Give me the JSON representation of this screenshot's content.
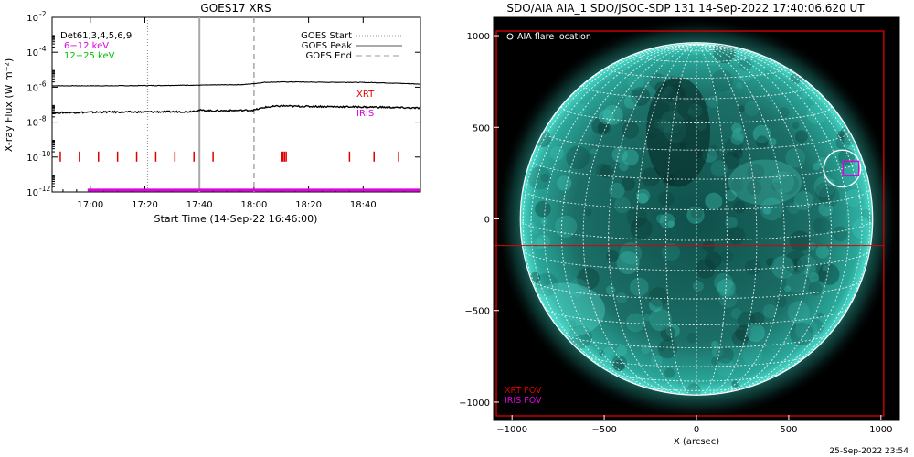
{
  "footer": {
    "timestamp": "25-Sep-2022 23:54"
  },
  "colors": {
    "red": "#e00000",
    "magenta": "#e000e0",
    "green": "#00c000",
    "flux_line": "#000000",
    "sun_teal": "#2fd6c6"
  },
  "chart_data": [
    {
      "id": "goes-xrs",
      "type": "line",
      "title": "GOES17 XRS",
      "xlabel": "Start Time (14-Sep-22 16:46:00)",
      "ylabel": "X-ray Flux (W m⁻²)",
      "y_scale": "log",
      "ylim": [
        1e-12,
        0.01
      ],
      "xlim_minutes": [
        0,
        135
      ],
      "x_ticks": [
        {
          "label": "17:00",
          "minute": 14
        },
        {
          "label": "17:20",
          "minute": 34
        },
        {
          "label": "17:40",
          "minute": 54
        },
        {
          "label": "18:00",
          "minute": 74
        },
        {
          "label": "18:20",
          "minute": 94
        },
        {
          "label": "18:40",
          "minute": 114
        }
      ],
      "y_ticks": [
        {
          "base": "10",
          "exp": "-12",
          "value": 1e-12
        },
        {
          "base": "10",
          "exp": "-10",
          "value": 1e-10
        },
        {
          "base": "10",
          "exp": "-8",
          "value": 1e-08
        },
        {
          "base": "10",
          "exp": "-6",
          "value": 1e-06
        },
        {
          "base": "10",
          "exp": "-4",
          "value": 0.0001
        },
        {
          "base": "10",
          "exp": "-2",
          "value": 0.01
        }
      ],
      "series": [
        {
          "name": "Det61,3,4,5,6,9 long",
          "color": "#000000",
          "points": [
            [
              0,
              1.2e-06
            ],
            [
              10,
              1.2e-06
            ],
            [
              20,
              1.2e-06
            ],
            [
              30,
              1.22e-06
            ],
            [
              40,
              1.25e-06
            ],
            [
              50,
              1.3e-06
            ],
            [
              54,
              1.3e-06
            ],
            [
              60,
              1.35e-06
            ],
            [
              70,
              1.4e-06
            ],
            [
              74,
              1.6e-06
            ],
            [
              78,
              1.9e-06
            ],
            [
              84,
              2e-06
            ],
            [
              90,
              2e-06
            ],
            [
              100,
              1.9e-06
            ],
            [
              110,
              1.9e-06
            ],
            [
              120,
              1.8e-06
            ],
            [
              130,
              1.6e-06
            ],
            [
              135,
              1.5e-06
            ]
          ]
        },
        {
          "name": "Det61,3,4,5,6,9 short",
          "color": "#000000",
          "points": [
            [
              0,
              3.4e-08
            ],
            [
              10,
              3.6e-08
            ],
            [
              20,
              3.8e-08
            ],
            [
              30,
              3.8e-08
            ],
            [
              40,
              3.9e-08
            ],
            [
              50,
              4e-08
            ],
            [
              54,
              4.8e-08
            ],
            [
              58,
              4.5e-08
            ],
            [
              64,
              4.6e-08
            ],
            [
              70,
              4.7e-08
            ],
            [
              74,
              4.9e-08
            ],
            [
              78,
              7e-08
            ],
            [
              84,
              8.5e-08
            ],
            [
              90,
              8e-08
            ],
            [
              100,
              7.8e-08
            ],
            [
              110,
              7.5e-08
            ],
            [
              120,
              7.2e-08
            ],
            [
              130,
              6.6e-08
            ],
            [
              135,
              6.3e-08
            ]
          ]
        }
      ],
      "vertical_markers": [
        {
          "name": "GOES Start",
          "minute": 35,
          "style": "dotted",
          "color": "#9a9a9a"
        },
        {
          "name": "GOES Peak",
          "minute": 54,
          "style": "solid",
          "color": "#a8a8a8"
        },
        {
          "name": "GOES End",
          "minute": 74,
          "style": "dashed",
          "color": "#a8a8a8"
        }
      ],
      "xrt_ticks_minutes": [
        3,
        10,
        17,
        24,
        31,
        38,
        45,
        52,
        59,
        84,
        84.6,
        85.2,
        85.8,
        109,
        118,
        127,
        135
      ],
      "xrt_tick_value": 1e-10,
      "iris_coverage_minutes": [
        13,
        135
      ],
      "iris_level": 1.3e-12,
      "legend": {
        "detectors": {
          "label": "Det61,3,4,5,6,9",
          "color": "#000000"
        },
        "low_band": {
          "label": "6−12 keV",
          "color": "#e000e0"
        },
        "high_band": {
          "label": "12−25 keV",
          "color": "#00c000"
        },
        "goes_start": "GOES Start",
        "goes_peak": "GOES Peak",
        "goes_end": "GOES End",
        "xrt": {
          "label": "XRT",
          "color": "#e00000"
        },
        "iris": {
          "label": "IRIS",
          "color": "#e000e0"
        }
      }
    },
    {
      "id": "aia-image",
      "type": "image",
      "title": "SDO/AIA AIA_1 SDO/JSOC-SDP 131 14-Sep-2022 17:40:06.620 UT",
      "xlabel": "X (arcsec)",
      "x_ticks": [
        -1000,
        -500,
        0,
        500,
        1000
      ],
      "y_ticks": [
        1000,
        500,
        0,
        -500,
        -1000
      ],
      "xlim": [
        -1100,
        1100
      ],
      "ylim": [
        -1100,
        1100
      ],
      "solar_radius_arcsec": 955,
      "flare_location": {
        "label": "AIA flare location",
        "x": 790,
        "y": 275,
        "radius": 100
      },
      "iris_fov": {
        "label": "IRIS FOV",
        "color": "#e000e0",
        "x": [
          795,
          880
        ],
        "y": [
          235,
          315
        ]
      },
      "xrt_fov": {
        "label": "XRT FOV",
        "color": "#e00000",
        "x": [
          -1085,
          1015
        ],
        "y": [
          -1075,
          1025
        ]
      },
      "crosshair": {
        "color": "#e00000",
        "x": 1015,
        "y": -145
      }
    }
  ]
}
